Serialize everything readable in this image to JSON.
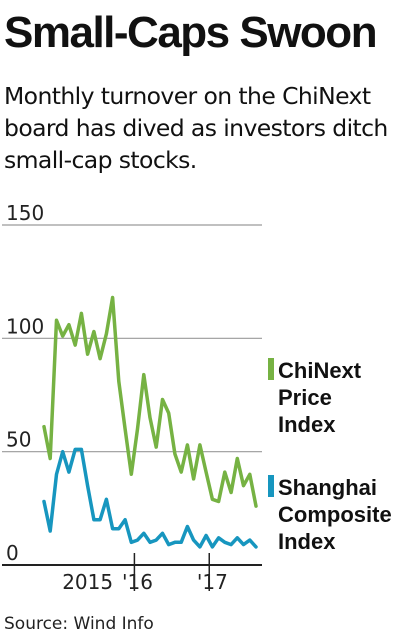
{
  "header": {
    "title": "Small-Caps Swoon",
    "subtitle": "Monthly turnover on the ChiNext board has dived as investors ditch small-cap stocks."
  },
  "source": "Source: Wind Info",
  "colors": {
    "chinext": "#76b243",
    "shanghai": "#1796bf",
    "grid": "#9a9a9a",
    "axis": "#222222"
  },
  "chart_data": {
    "type": "line",
    "title": "Small-Caps Swoon",
    "xlabel": "",
    "ylabel": "",
    "ylim": [
      0,
      150
    ],
    "yticks": [
      0,
      50,
      100,
      150
    ],
    "grid": true,
    "legend": "right",
    "x_axis": {
      "range": [
        "2014-10",
        "2017-09"
      ],
      "ticks": [
        {
          "label": "2015",
          "at": "2015-05"
        },
        {
          "label": "'16",
          "at": "2016-01"
        },
        {
          "label": "'17",
          "at": "2017-01"
        }
      ],
      "dividers": [
        "2016-01",
        "2017-01"
      ]
    },
    "x": [
      "2014-10",
      "2014-11",
      "2014-12",
      "2015-01",
      "2015-02",
      "2015-03",
      "2015-04",
      "2015-05",
      "2015-06",
      "2015-07",
      "2015-08",
      "2015-09",
      "2015-10",
      "2015-11",
      "2015-12",
      "2016-01",
      "2016-02",
      "2016-03",
      "2016-04",
      "2016-05",
      "2016-06",
      "2016-07",
      "2016-08",
      "2016-09",
      "2016-10",
      "2016-11",
      "2016-12",
      "2017-01",
      "2017-02",
      "2017-03",
      "2017-04",
      "2017-05",
      "2017-06",
      "2017-07",
      "2017-08"
    ],
    "series": [
      {
        "name": "ChiNext Price Index",
        "values": [
          61,
          47,
          108,
          101,
          106,
          97,
          111,
          93,
          103,
          91,
          102,
          118,
          81,
          60,
          40,
          60,
          84,
          65,
          52,
          73,
          67,
          49,
          41,
          53,
          38,
          53,
          41,
          29,
          28,
          41,
          32,
          47,
          35,
          40,
          26
        ]
      },
      {
        "name": "Shanghai Composite Index",
        "values": [
          28,
          15,
          40,
          50,
          41,
          51,
          51,
          35,
          20,
          20,
          29,
          16,
          16,
          20,
          10,
          11,
          14,
          10,
          11,
          14,
          9,
          10,
          10,
          17,
          11,
          8,
          13,
          8,
          12,
          10,
          9,
          12,
          9,
          11,
          8
        ]
      }
    ]
  },
  "legend": {
    "chinext_label": [
      "ChiNext",
      "Price",
      "Index"
    ],
    "shanghai_label": [
      "Shanghai",
      "Composite",
      "Index"
    ]
  }
}
